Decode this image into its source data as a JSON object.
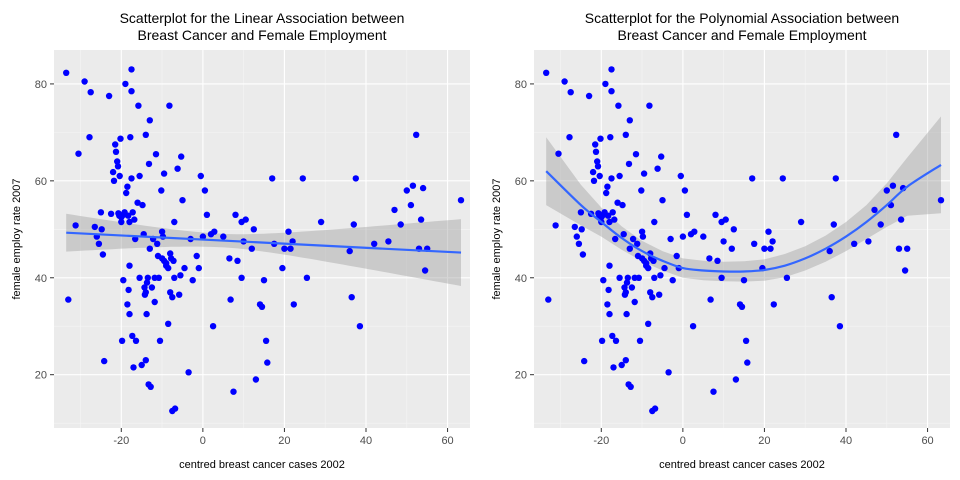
{
  "chart_data": [
    {
      "type": "scatter",
      "title_lines": [
        "Scatterplot for the Linear Association between",
        "Breast Cancer and Female Employment"
      ],
      "xlabel": "centred breast cancer cases 2002",
      "ylabel": "female employ rate 2007",
      "xlim": [
        -36.5,
        65.5
      ],
      "ylim": [
        9,
        87
      ],
      "xticks": [
        -20,
        0,
        20,
        40,
        60
      ],
      "yticks": [
        20,
        40,
        60,
        80
      ],
      "grid": true,
      "point_color": "#0000ff",
      "fit_color": "#3366ff",
      "band_color": "#999999",
      "fit_type": "linear",
      "points": [
        [
          -33.5,
          82.3
        ],
        [
          -33.0,
          35.5
        ],
        [
          -31.2,
          50.8
        ],
        [
          -30.5,
          65.6
        ],
        [
          -29.0,
          80.5
        ],
        [
          -27.8,
          69.0
        ],
        [
          -27.5,
          78.3
        ],
        [
          -26.5,
          50.5
        ],
        [
          -26.0,
          48.5
        ],
        [
          -25.5,
          47.0
        ],
        [
          -25.0,
          53.5
        ],
        [
          -24.8,
          50.0
        ],
        [
          -24.5,
          44.8
        ],
        [
          -24.2,
          22.8
        ],
        [
          -23.0,
          77.5
        ],
        [
          -22.5,
          53.2
        ],
        [
          -22.0,
          61.8
        ],
        [
          -21.8,
          60.0
        ],
        [
          -21.5,
          67.5
        ],
        [
          -21.3,
          66.0
        ],
        [
          -21.0,
          64.0
        ],
        [
          -20.8,
          63.0
        ],
        [
          -20.7,
          53.3
        ],
        [
          -20.5,
          52.8
        ],
        [
          -20.4,
          61.0
        ],
        [
          -20.2,
          68.7
        ],
        [
          -20.0,
          52.5
        ],
        [
          -20.0,
          51.5
        ],
        [
          -19.8,
          27.0
        ],
        [
          -19.5,
          39.5
        ],
        [
          -19.5,
          53.0
        ],
        [
          -19.2,
          53.5
        ],
        [
          -19.0,
          80.0
        ],
        [
          -18.8,
          57.5
        ],
        [
          -18.5,
          58.8
        ],
        [
          -18.5,
          34.5
        ],
        [
          -18.3,
          52.8
        ],
        [
          -18.2,
          37.5
        ],
        [
          -18.0,
          42.5
        ],
        [
          -18.0,
          51.5
        ],
        [
          -18.0,
          32.5
        ],
        [
          -17.8,
          69.0
        ],
        [
          -17.5,
          60.5
        ],
        [
          -17.5,
          83.0
        ],
        [
          -17.5,
          78.5
        ],
        [
          -17.3,
          28.0
        ],
        [
          -17.2,
          53.5
        ],
        [
          -17.0,
          21.5
        ],
        [
          -16.8,
          52.0
        ],
        [
          -16.6,
          48.0
        ],
        [
          -16.4,
          27.0
        ],
        [
          -16.0,
          55.5
        ],
        [
          -15.8,
          75.5
        ],
        [
          -15.5,
          40.0
        ],
        [
          -15.5,
          61.0
        ],
        [
          -15.0,
          22.0
        ],
        [
          -14.8,
          55.0
        ],
        [
          -14.5,
          49.0
        ],
        [
          -14.3,
          38.0
        ],
        [
          -14.2,
          36.5
        ],
        [
          -14.0,
          69.5
        ],
        [
          -14.0,
          23.0
        ],
        [
          -14.0,
          37.0
        ],
        [
          -13.8,
          32.5
        ],
        [
          -13.7,
          39.0
        ],
        [
          -13.5,
          40.0
        ],
        [
          -13.3,
          18.0
        ],
        [
          -13.2,
          63.5
        ],
        [
          -13.0,
          72.5
        ],
        [
          -13.0,
          46.0
        ],
        [
          -12.8,
          17.5
        ],
        [
          -12.5,
          38.0
        ],
        [
          -12.2,
          48.0
        ],
        [
          -11.8,
          35.0
        ],
        [
          -11.8,
          40.0
        ],
        [
          -11.5,
          65.5
        ],
        [
          -11.2,
          47.0
        ],
        [
          -11.0,
          44.5
        ],
        [
          -10.8,
          40.0
        ],
        [
          -10.5,
          27.0
        ],
        [
          -10.2,
          58.0
        ],
        [
          -10.0,
          49.5
        ],
        [
          -10.0,
          44.0
        ],
        [
          -9.8,
          48.5
        ],
        [
          -9.5,
          43.5
        ],
        [
          -9.5,
          61.5
        ],
        [
          -9.0,
          43.0
        ],
        [
          -9.0,
          42.5
        ],
        [
          -8.5,
          42.0
        ],
        [
          -8.5,
          30.5
        ],
        [
          -8.2,
          75.5
        ],
        [
          -8.0,
          37.0
        ],
        [
          -8.0,
          45.0
        ],
        [
          -7.8,
          44.0
        ],
        [
          -7.5,
          36.0
        ],
        [
          -7.5,
          12.5
        ],
        [
          -7.2,
          43.5
        ],
        [
          -7.0,
          51.5
        ],
        [
          -7.0,
          40.0
        ],
        [
          -6.8,
          13.0
        ],
        [
          -6.2,
          62.5
        ],
        [
          -5.8,
          36.5
        ],
        [
          -5.5,
          40.5
        ],
        [
          -5.3,
          65.0
        ],
        [
          -5.0,
          56.0
        ],
        [
          -4.5,
          42.0
        ],
        [
          -3.5,
          20.5
        ],
        [
          -3.0,
          48.0
        ],
        [
          -2.5,
          39.5
        ],
        [
          -1.5,
          44.5
        ],
        [
          -1.0,
          42.0
        ],
        [
          -0.5,
          61.0
        ],
        [
          0.0,
          48.5
        ],
        [
          0.5,
          58.0
        ],
        [
          1.0,
          53.0
        ],
        [
          2.0,
          49.0
        ],
        [
          2.5,
          30.0
        ],
        [
          2.8,
          49.5
        ],
        [
          5.0,
          48.5
        ],
        [
          6.5,
          44.0
        ],
        [
          6.8,
          35.5
        ],
        [
          7.5,
          16.5
        ],
        [
          8.0,
          53.0
        ],
        [
          8.5,
          43.5
        ],
        [
          9.5,
          40.0
        ],
        [
          9.5,
          51.5
        ],
        [
          10.0,
          47.5
        ],
        [
          10.5,
          52.0
        ],
        [
          12.0,
          46.0
        ],
        [
          12.5,
          50.0
        ],
        [
          13.0,
          19.0
        ],
        [
          14.0,
          34.5
        ],
        [
          14.5,
          34.0
        ],
        [
          15.0,
          39.5
        ],
        [
          15.5,
          27.0
        ],
        [
          15.8,
          22.5
        ],
        [
          17.0,
          60.5
        ],
        [
          17.5,
          47.0
        ],
        [
          19.5,
          42.0
        ],
        [
          20.0,
          46.0
        ],
        [
          21.0,
          49.5
        ],
        [
          21.5,
          46.0
        ],
        [
          22.0,
          47.5
        ],
        [
          22.3,
          34.5
        ],
        [
          24.5,
          60.5
        ],
        [
          25.5,
          40.0
        ],
        [
          29.0,
          51.5
        ],
        [
          36.0,
          45.5
        ],
        [
          36.5,
          36.0
        ],
        [
          37.0,
          51.0
        ],
        [
          37.5,
          60.5
        ],
        [
          38.5,
          30.0
        ],
        [
          42.0,
          47.0
        ],
        [
          45.5,
          47.5
        ],
        [
          47.0,
          54.0
        ],
        [
          48.5,
          51.0
        ],
        [
          50.0,
          58.0
        ],
        [
          51.0,
          55.0
        ],
        [
          51.5,
          59.0
        ],
        [
          52.3,
          69.5
        ],
        [
          53.0,
          46.0
        ],
        [
          54.0,
          58.5
        ],
        [
          53.5,
          52.0
        ],
        [
          54.5,
          41.5
        ],
        [
          55.0,
          46.0
        ],
        [
          63.3,
          56.0
        ]
      ],
      "fit": {
        "x": [
          -33.5,
          63.3
        ],
        "y": [
          49.3,
          45.2
        ],
        "band_halfwidth_at_ends": [
          3.9,
          6.9
        ],
        "band_halfwidth_min": 1.4,
        "band_min_x": 4.5
      }
    },
    {
      "type": "scatter",
      "title_lines": [
        "Scatterplot for the Polynomial Association between",
        "Breast Cancer and Female Employment"
      ],
      "xlabel": "centred breast cancer cases 2002",
      "ylabel": "female employ rate 2007",
      "xlim": [
        -36.5,
        65.5
      ],
      "ylim": [
        9,
        87
      ],
      "xticks": [
        -20,
        0,
        20,
        40,
        60
      ],
      "yticks": [
        20,
        40,
        60,
        80
      ],
      "grid": true,
      "point_color": "#0000ff",
      "fit_color": "#3366ff",
      "band_color": "#999999",
      "fit_type": "quadratic",
      "fit": {
        "x": [
          -33.5,
          -25,
          -20,
          -15,
          -10,
          -5,
          0,
          5,
          10,
          15,
          20,
          25,
          30,
          35,
          40,
          45,
          50,
          55,
          63.3
        ],
        "y": [
          62.0,
          55.0,
          51.5,
          48.2,
          45.5,
          43.5,
          42.0,
          41.5,
          41.3,
          41.3,
          41.6,
          42.5,
          44.0,
          46.0,
          48.5,
          51.5,
          55.0,
          58.8,
          63.3
        ],
        "band_halfwidth": [
          7.0,
          4.2,
          3.0,
          2.4,
          2.1,
          2.0,
          2.0,
          2.0,
          2.0,
          2.1,
          2.2,
          2.4,
          2.5,
          2.7,
          3.0,
          3.5,
          4.5,
          6.0,
          10.0
        ]
      }
    }
  ]
}
